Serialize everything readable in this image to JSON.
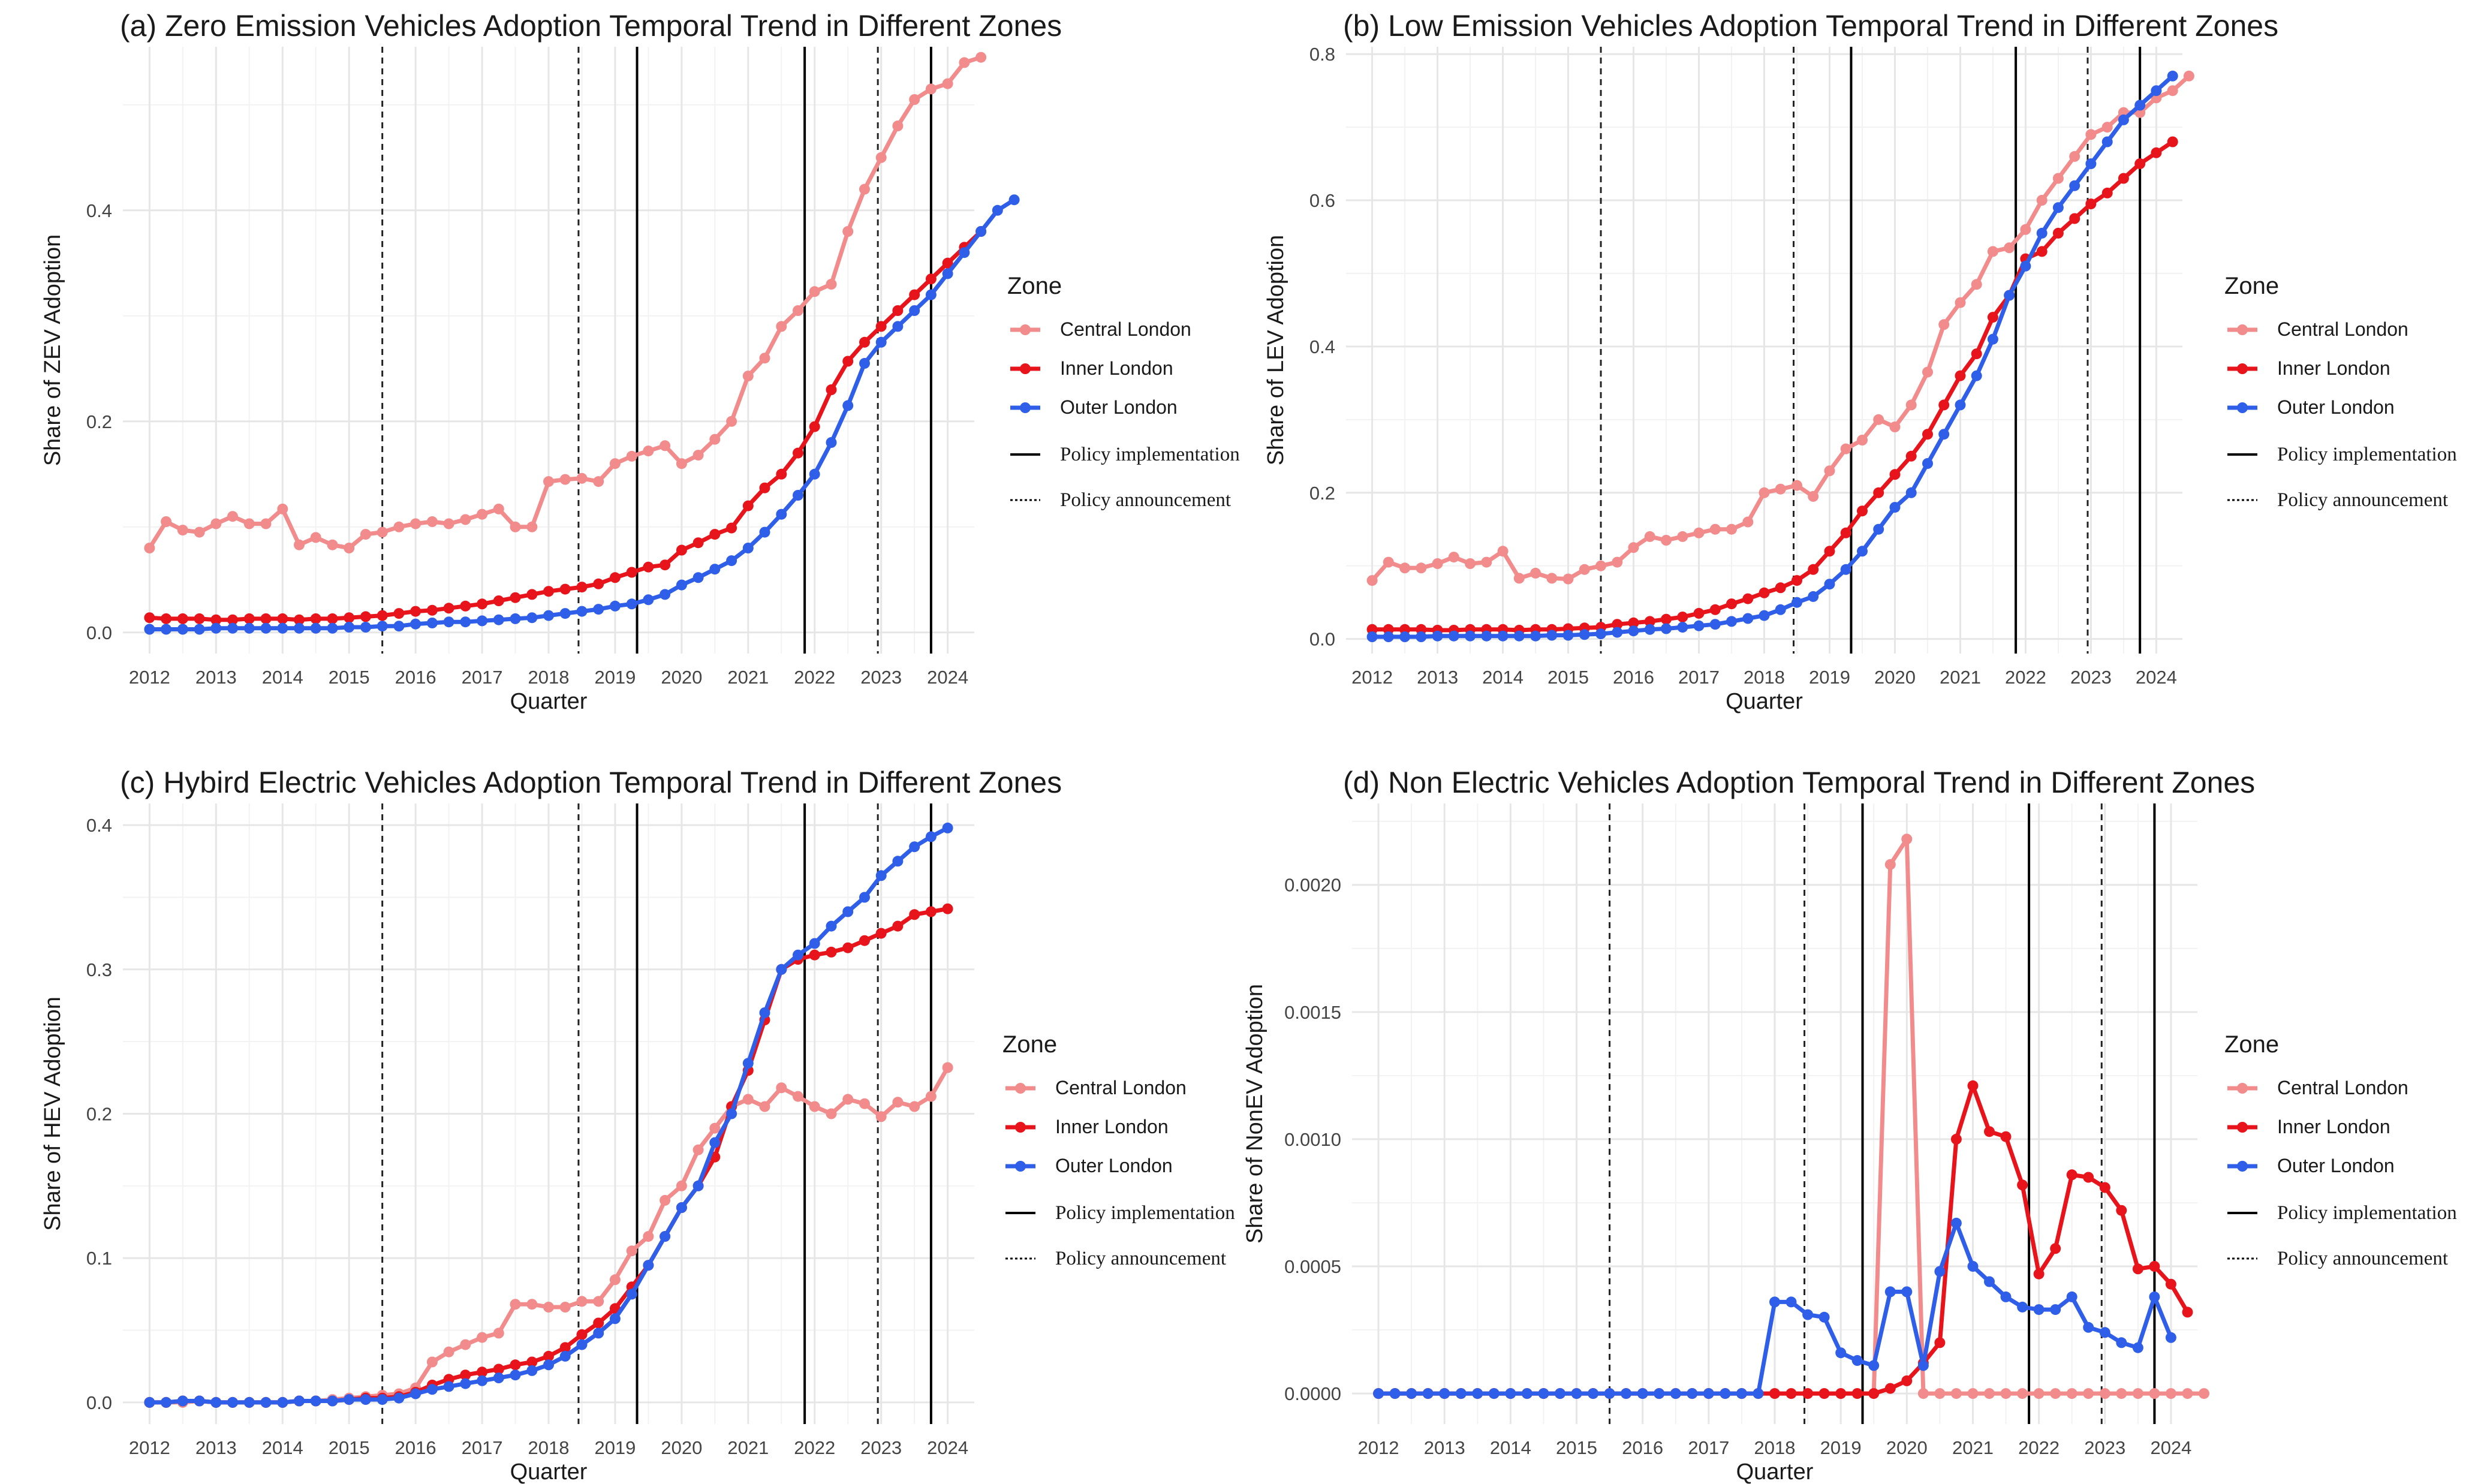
{
  "colors": {
    "central": "#f28b8b",
    "inner": "#e8141b",
    "outer": "#2f5fe8",
    "grid_major": "#e6e6e6",
    "grid_minor": "#f2f2f2",
    "axis_text": "#444444",
    "title_text": "#1a1a1a"
  },
  "legend": {
    "title": "Zone",
    "central": "Central London",
    "inner": "Inner London",
    "outer": "Outer London",
    "impl": "Policy implementation",
    "ann": "Policy announcement"
  },
  "chart_data": [
    {
      "id": "a",
      "type": "line",
      "title": "(a) Zero Emission Vehicles Adoption Temporal Trend in Different Zones",
      "xlabel": "Quarter",
      "ylabel": "Share of ZEV Adoption",
      "xlim": [
        2011.6,
        2024.4
      ],
      "ylim": [
        -0.02,
        0.555
      ],
      "yticks": [
        0.0,
        0.2,
        0.4
      ],
      "ytick_labels": [
        "0.0",
        "0.2",
        "0.4"
      ],
      "xticks": [
        2012,
        2013,
        2014,
        2015,
        2016,
        2017,
        2018,
        2019,
        2020,
        2021,
        2022,
        2023,
        2024
      ],
      "xtick_labels": [
        "2012",
        "2013",
        "2014",
        "2015",
        "2016",
        "2017",
        "2018",
        "2019",
        "2020",
        "2021",
        "2022",
        "2023",
        "2024"
      ],
      "policy_announcements": [
        2015.5,
        2018.45,
        2022.95
      ],
      "policy_implementations": [
        2019.33,
        2021.85,
        2023.75
      ],
      "x_start": 2012.0,
      "x_step": 0.25,
      "series": [
        {
          "name": "Central London",
          "key": "central",
          "values": [
            0.08,
            0.105,
            0.097,
            0.095,
            0.103,
            0.11,
            0.103,
            0.103,
            0.117,
            0.083,
            0.09,
            0.083,
            0.08,
            0.093,
            0.095,
            0.1,
            0.103,
            0.105,
            0.103,
            0.107,
            0.112,
            0.117,
            0.1,
            0.1,
            0.143,
            0.145,
            0.146,
            0.143,
            0.16,
            0.167,
            0.172,
            0.177,
            0.16,
            0.168,
            0.183,
            0.2,
            0.243,
            0.26,
            0.29,
            0.305,
            0.323,
            0.33,
            0.38,
            0.42,
            0.45,
            0.48,
            0.505,
            0.515,
            0.52,
            0.54,
            0.545
          ]
        },
        {
          "name": "Inner London",
          "key": "inner",
          "values": [
            0.014,
            0.013,
            0.013,
            0.013,
            0.012,
            0.012,
            0.013,
            0.013,
            0.013,
            0.012,
            0.013,
            0.013,
            0.014,
            0.015,
            0.016,
            0.018,
            0.02,
            0.021,
            0.023,
            0.025,
            0.027,
            0.03,
            0.033,
            0.036,
            0.039,
            0.041,
            0.043,
            0.046,
            0.052,
            0.057,
            0.062,
            0.064,
            0.078,
            0.085,
            0.093,
            0.099,
            0.12,
            0.137,
            0.15,
            0.17,
            0.195,
            0.23,
            0.257,
            0.275,
            0.29,
            0.305,
            0.32,
            0.335,
            0.35,
            0.365,
            0.38
          ]
        },
        {
          "name": "Outer London",
          "key": "outer",
          "values": [
            0.003,
            0.003,
            0.003,
            0.003,
            0.004,
            0.004,
            0.004,
            0.004,
            0.004,
            0.004,
            0.004,
            0.004,
            0.005,
            0.005,
            0.006,
            0.006,
            0.008,
            0.009,
            0.01,
            0.01,
            0.011,
            0.012,
            0.013,
            0.014,
            0.016,
            0.018,
            0.02,
            0.022,
            0.025,
            0.027,
            0.031,
            0.036,
            0.045,
            0.052,
            0.06,
            0.068,
            0.08,
            0.095,
            0.112,
            0.13,
            0.15,
            0.18,
            0.215,
            0.255,
            0.275,
            0.29,
            0.305,
            0.32,
            0.34,
            0.36,
            0.38,
            0.4,
            0.41
          ]
        }
      ]
    },
    {
      "id": "b",
      "type": "line",
      "title": "(b) Low Emission Vehicles Adoption Temporal Trend in Different Zones",
      "xlabel": "Quarter",
      "ylabel": "Share of LEV Adoption",
      "xlim": [
        2011.6,
        2024.4
      ],
      "ylim": [
        -0.02,
        0.81
      ],
      "yticks": [
        0.0,
        0.2,
        0.4,
        0.6,
        0.8
      ],
      "ytick_labels": [
        "0.0",
        "0.2",
        "0.4",
        "0.6",
        "0.8"
      ],
      "xticks": [
        2012,
        2013,
        2014,
        2015,
        2016,
        2017,
        2018,
        2019,
        2020,
        2021,
        2022,
        2023,
        2024
      ],
      "xtick_labels": [
        "2012",
        "2013",
        "2014",
        "2015",
        "2016",
        "2017",
        "2018",
        "2019",
        "2020",
        "2021",
        "2022",
        "2023",
        "2024"
      ],
      "policy_announcements": [
        2015.5,
        2018.45,
        2022.95
      ],
      "policy_implementations": [
        2019.33,
        2021.85,
        2023.75
      ],
      "x_start": 2012.0,
      "x_step": 0.25,
      "series": [
        {
          "name": "Central London",
          "key": "central",
          "values": [
            0.08,
            0.105,
            0.097,
            0.097,
            0.103,
            0.112,
            0.103,
            0.105,
            0.12,
            0.083,
            0.09,
            0.083,
            0.082,
            0.095,
            0.1,
            0.105,
            0.125,
            0.14,
            0.135,
            0.14,
            0.145,
            0.15,
            0.15,
            0.16,
            0.2,
            0.205,
            0.21,
            0.195,
            0.23,
            0.26,
            0.272,
            0.3,
            0.29,
            0.32,
            0.365,
            0.43,
            0.46,
            0.485,
            0.53,
            0.535,
            0.56,
            0.6,
            0.63,
            0.66,
            0.69,
            0.7,
            0.72,
            0.72,
            0.74,
            0.75,
            0.77
          ]
        },
        {
          "name": "Inner London",
          "key": "inner",
          "values": [
            0.013,
            0.013,
            0.013,
            0.013,
            0.012,
            0.012,
            0.013,
            0.013,
            0.013,
            0.012,
            0.013,
            0.013,
            0.014,
            0.015,
            0.016,
            0.02,
            0.022,
            0.024,
            0.027,
            0.03,
            0.035,
            0.04,
            0.048,
            0.055,
            0.063,
            0.07,
            0.08,
            0.095,
            0.12,
            0.145,
            0.175,
            0.2,
            0.225,
            0.25,
            0.28,
            0.32,
            0.36,
            0.39,
            0.44,
            0.47,
            0.52,
            0.53,
            0.555,
            0.575,
            0.595,
            0.61,
            0.63,
            0.65,
            0.665,
            0.68
          ]
        },
        {
          "name": "Outer London",
          "key": "outer",
          "values": [
            0.003,
            0.003,
            0.003,
            0.003,
            0.004,
            0.004,
            0.004,
            0.004,
            0.004,
            0.004,
            0.004,
            0.005,
            0.005,
            0.006,
            0.007,
            0.009,
            0.011,
            0.013,
            0.014,
            0.016,
            0.018,
            0.02,
            0.024,
            0.028,
            0.032,
            0.04,
            0.05,
            0.058,
            0.075,
            0.095,
            0.12,
            0.15,
            0.18,
            0.2,
            0.24,
            0.28,
            0.32,
            0.36,
            0.41,
            0.47,
            0.51,
            0.555,
            0.59,
            0.62,
            0.65,
            0.68,
            0.71,
            0.73,
            0.75,
            0.77
          ]
        }
      ]
    },
    {
      "id": "c",
      "type": "line",
      "title": "(c) Hybird Electric Vehicles Adoption Temporal Trend in Different Zones",
      "xlabel": "Quarter",
      "ylabel": "Share of HEV Adoption",
      "xlim": [
        2011.6,
        2024.4
      ],
      "ylim": [
        -0.015,
        0.415
      ],
      "yticks": [
        0.0,
        0.1,
        0.2,
        0.3,
        0.4
      ],
      "ytick_labels": [
        "0.0",
        "0.1",
        "0.2",
        "0.3",
        "0.4"
      ],
      "xticks": [
        2012,
        2013,
        2014,
        2015,
        2016,
        2017,
        2018,
        2019,
        2020,
        2021,
        2022,
        2023,
        2024
      ],
      "xtick_labels": [
        "2012",
        "2013",
        "2014",
        "2015",
        "2016",
        "2017",
        "2018",
        "2019",
        "2020",
        "2021",
        "2022",
        "2023",
        "2024"
      ],
      "policy_announcements": [
        2015.5,
        2018.45,
        2022.95
      ],
      "policy_implementations": [
        2019.33,
        2021.85,
        2023.75
      ],
      "x_start": 2012.0,
      "x_step": 0.25,
      "series": [
        {
          "name": "Central London",
          "key": "central",
          "values": [
            0.0,
            0.0,
            0.0,
            0.001,
            0.0,
            0.0,
            0.0,
            0.0,
            0.0,
            0.001,
            0.001,
            0.002,
            0.003,
            0.004,
            0.005,
            0.006,
            0.01,
            0.028,
            0.035,
            0.04,
            0.045,
            0.048,
            0.068,
            0.068,
            0.066,
            0.066,
            0.07,
            0.07,
            0.085,
            0.105,
            0.115,
            0.14,
            0.15,
            0.175,
            0.19,
            0.205,
            0.21,
            0.205,
            0.218,
            0.212,
            0.205,
            0.2,
            0.21,
            0.207,
            0.198,
            0.208,
            0.205,
            0.212,
            0.232
          ]
        },
        {
          "name": "Inner London",
          "key": "inner",
          "values": [
            0.0,
            0.0,
            0.001,
            0.001,
            0.0,
            0.0,
            0.0,
            0.0,
            0.0,
            0.001,
            0.001,
            0.001,
            0.002,
            0.003,
            0.003,
            0.004,
            0.007,
            0.012,
            0.016,
            0.019,
            0.021,
            0.023,
            0.026,
            0.028,
            0.032,
            0.038,
            0.047,
            0.055,
            0.065,
            0.08,
            0.095,
            0.115,
            0.135,
            0.15,
            0.17,
            0.205,
            0.23,
            0.265,
            0.3,
            0.307,
            0.31,
            0.312,
            0.315,
            0.32,
            0.325,
            0.33,
            0.338,
            0.34,
            0.342
          ]
        },
        {
          "name": "Outer London",
          "key": "outer",
          "values": [
            0.0,
            0.0,
            0.001,
            0.001,
            0.0,
            0.0,
            0.0,
            0.0,
            0.0,
            0.001,
            0.001,
            0.001,
            0.002,
            0.002,
            0.002,
            0.003,
            0.006,
            0.009,
            0.011,
            0.013,
            0.015,
            0.017,
            0.019,
            0.022,
            0.026,
            0.032,
            0.04,
            0.048,
            0.058,
            0.075,
            0.095,
            0.115,
            0.135,
            0.15,
            0.18,
            0.2,
            0.235,
            0.27,
            0.3,
            0.31,
            0.318,
            0.33,
            0.34,
            0.35,
            0.365,
            0.375,
            0.385,
            0.392,
            0.398
          ]
        }
      ]
    },
    {
      "id": "d",
      "type": "line",
      "title": "(d) Non Electric Vehicles Adoption Temporal Trend in Different Zones",
      "xlabel": "Quarter",
      "ylabel": "Share of NonEV Adoption",
      "xlim": [
        2011.6,
        2024.4
      ],
      "ylim": [
        -0.00012,
        0.00232
      ],
      "yticks": [
        0.0,
        0.0005,
        0.001,
        0.0015,
        0.002
      ],
      "ytick_labels": [
        "0.0000",
        "0.0005",
        "0.0010",
        "0.0015",
        "0.0020"
      ],
      "xticks": [
        2012,
        2013,
        2014,
        2015,
        2016,
        2017,
        2018,
        2019,
        2020,
        2021,
        2022,
        2023,
        2024
      ],
      "xtick_labels": [
        "2012",
        "2013",
        "2014",
        "2015",
        "2016",
        "2017",
        "2018",
        "2019",
        "2020",
        "2021",
        "2022",
        "2023",
        "2024"
      ],
      "policy_announcements": [
        2015.5,
        2018.45,
        2022.95
      ],
      "policy_implementations": [
        2019.33,
        2021.85,
        2023.75
      ],
      "x_start": 2012.0,
      "x_step": 0.25,
      "series": [
        {
          "name": "Central London",
          "key": "central",
          "values": [
            0,
            0,
            0,
            0,
            0,
            0,
            0,
            0,
            0,
            0,
            0,
            0,
            0,
            0,
            0,
            0,
            0,
            0,
            0,
            0,
            0,
            0,
            0,
            0,
            0,
            0,
            0,
            0,
            0,
            0,
            0,
            0.00208,
            0.00218,
            0,
            0,
            0,
            0,
            0,
            0,
            0,
            0,
            0,
            0,
            0,
            0,
            0,
            0,
            0,
            0,
            0,
            0
          ]
        },
        {
          "name": "Inner London",
          "key": "inner",
          "values": [
            0,
            0,
            0,
            0,
            0,
            0,
            0,
            0,
            0,
            0,
            0,
            0,
            0,
            0,
            0,
            0,
            0,
            0,
            0,
            0,
            0,
            0,
            0,
            0,
            0,
            0,
            0,
            0,
            0,
            0,
            0,
            2e-05,
            5e-05,
            0.00012,
            0.0002,
            0.001,
            0.00121,
            0.00103,
            0.00101,
            0.00082,
            0.00047,
            0.00057,
            0.00086,
            0.00085,
            0.00081,
            0.00072,
            0.00049,
            0.0005,
            0.00043,
            0.00032
          ]
        },
        {
          "name": "Outer London",
          "key": "outer",
          "values": [
            0,
            0,
            0,
            0,
            0,
            0,
            0,
            0,
            0,
            0,
            0,
            0,
            0,
            0,
            0,
            0,
            0,
            0,
            0,
            0,
            0,
            0,
            0,
            0,
            0.00036,
            0.00036,
            0.00031,
            0.0003,
            0.00016,
            0.00013,
            0.00011,
            0.0004,
            0.0004,
            0.00011,
            0.00048,
            0.00067,
            0.0005,
            0.00044,
            0.00038,
            0.00034,
            0.00033,
            0.00033,
            0.00038,
            0.00026,
            0.00024,
            0.0002,
            0.00018,
            0.00038,
            0.00022
          ]
        }
      ]
    }
  ]
}
